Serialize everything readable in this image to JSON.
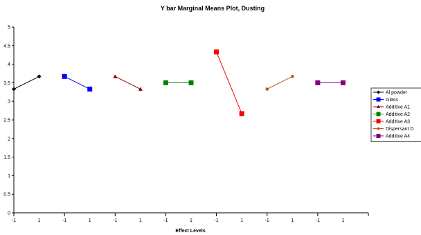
{
  "chart_data": {
    "type": "line",
    "title": "Y bar Marginal Means Plot, Dusting",
    "xlabel": "Effect Levels",
    "ylabel": "",
    "ylim": [
      0,
      5
    ],
    "yticks": [
      "0",
      "0.5",
      "1",
      "1.5",
      "2",
      "2.5",
      "3",
      "3.5",
      "4",
      "4.5",
      "5"
    ],
    "x": [
      "-1",
      "1"
    ],
    "grid": false,
    "legend_position": "right",
    "series": [
      {
        "name": "Al powder",
        "values": [
          3.33,
          3.67
        ],
        "color": "#000000",
        "marker": "diamond"
      },
      {
        "name": "Glass",
        "values": [
          3.67,
          3.33
        ],
        "color": "#0000ff",
        "marker": "square"
      },
      {
        "name": "Additive A1",
        "values": [
          3.67,
          3.33
        ],
        "color": "#8b0000",
        "marker": "triangle"
      },
      {
        "name": "Additive A2",
        "values": [
          3.5,
          3.5
        ],
        "color": "#008000",
        "marker": "square"
      },
      {
        "name": "Additive A3",
        "values": [
          4.33,
          2.67
        ],
        "color": "#ff0000",
        "marker": "square"
      },
      {
        "name": "Dispersant D",
        "values": [
          3.33,
          3.67
        ],
        "color": "#c0501e",
        "marker": "circle"
      },
      {
        "name": "Additive A4",
        "values": [
          3.5,
          3.5
        ],
        "color": "#800080",
        "marker": "square"
      }
    ]
  }
}
